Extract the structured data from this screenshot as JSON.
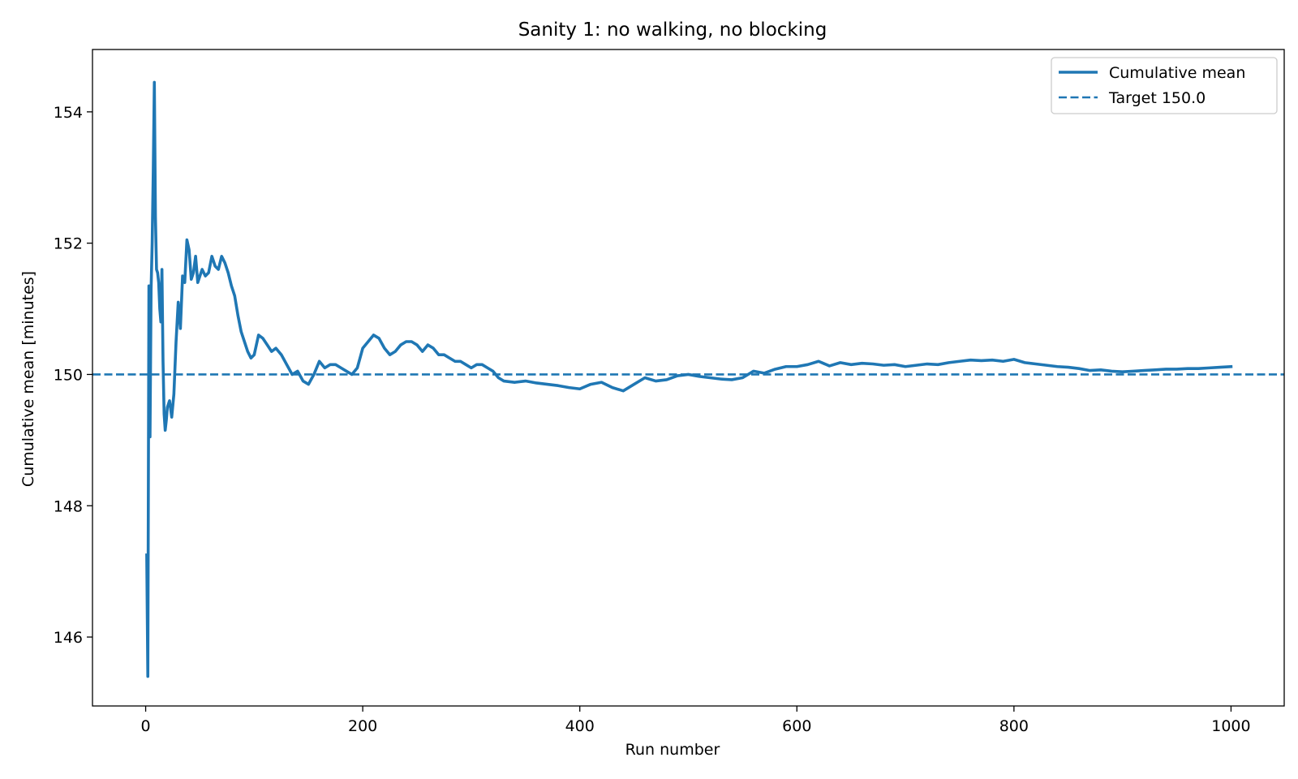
{
  "chart_data": {
    "type": "line",
    "title": "Sanity 1: no walking, no blocking",
    "xlabel": "Run number",
    "ylabel": "Cumulative mean [minutes]",
    "xlim": [
      -49,
      1049
    ],
    "ylim": [
      144.95,
      154.95
    ],
    "xticks": [
      0,
      200,
      400,
      600,
      800,
      1000
    ],
    "yticks": [
      146,
      148,
      150,
      152,
      154
    ],
    "grid": false,
    "legend_position": "top-right",
    "colors": {
      "series": "#1f77b4",
      "axes": "#000000"
    },
    "series": [
      {
        "name": "Cumulative mean",
        "style": "solid",
        "x": [
          1,
          2,
          3,
          4,
          5,
          6,
          7,
          8,
          9,
          10,
          11,
          12,
          13,
          14,
          15,
          16,
          17,
          18,
          19,
          20,
          22,
          24,
          26,
          28,
          30,
          32,
          34,
          36,
          38,
          40,
          42,
          44,
          46,
          48,
          50,
          52,
          55,
          58,
          61,
          64,
          67,
          70,
          73,
          76,
          79,
          82,
          85,
          88,
          91,
          94,
          97,
          100,
          104,
          108,
          112,
          116,
          120,
          125,
          130,
          135,
          140,
          145,
          150,
          155,
          160,
          165,
          170,
          175,
          180,
          185,
          190,
          195,
          200,
          205,
          210,
          215,
          220,
          225,
          230,
          235,
          240,
          245,
          250,
          255,
          260,
          265,
          270,
          275,
          280,
          285,
          290,
          295,
          300,
          305,
          310,
          315,
          320,
          325,
          330,
          340,
          350,
          360,
          370,
          380,
          390,
          400,
          410,
          420,
          430,
          440,
          450,
          460,
          470,
          480,
          490,
          500,
          510,
          520,
          530,
          540,
          550,
          560,
          570,
          580,
          590,
          600,
          610,
          620,
          630,
          640,
          650,
          660,
          670,
          680,
          690,
          700,
          710,
          720,
          730,
          740,
          750,
          760,
          770,
          780,
          790,
          800,
          810,
          820,
          830,
          840,
          850,
          860,
          870,
          880,
          890,
          900,
          910,
          920,
          930,
          940,
          950,
          960,
          970,
          980,
          990,
          1000
        ],
        "y": [
          147.25,
          145.4,
          151.35,
          149.05,
          151.3,
          152.0,
          153.1,
          154.45,
          152.4,
          151.6,
          151.55,
          151.4,
          151.0,
          150.8,
          151.6,
          150.2,
          149.4,
          149.15,
          149.3,
          149.5,
          149.6,
          149.35,
          149.7,
          150.5,
          151.1,
          150.7,
          151.5,
          151.4,
          152.05,
          151.9,
          151.45,
          151.55,
          151.8,
          151.4,
          151.5,
          151.6,
          151.5,
          151.55,
          151.8,
          151.65,
          151.6,
          151.8,
          151.7,
          151.55,
          151.35,
          151.2,
          150.9,
          150.65,
          150.5,
          150.35,
          150.25,
          150.3,
          150.6,
          150.55,
          150.45,
          150.35,
          150.4,
          150.3,
          150.15,
          150.0,
          150.05,
          149.9,
          149.85,
          150.0,
          150.2,
          150.1,
          150.15,
          150.15,
          150.1,
          150.05,
          150.0,
          150.1,
          150.4,
          150.5,
          150.6,
          150.55,
          150.4,
          150.3,
          150.35,
          150.45,
          150.5,
          150.5,
          150.45,
          150.35,
          150.45,
          150.4,
          150.3,
          150.3,
          150.25,
          150.2,
          150.2,
          150.15,
          150.1,
          150.15,
          150.15,
          150.1,
          150.05,
          149.95,
          149.9,
          149.88,
          149.9,
          149.87,
          149.85,
          149.83,
          149.8,
          149.78,
          149.85,
          149.88,
          149.8,
          149.75,
          149.85,
          149.95,
          149.9,
          149.92,
          149.98,
          150.0,
          149.97,
          149.95,
          149.93,
          149.92,
          149.95,
          150.05,
          150.02,
          150.08,
          150.12,
          150.12,
          150.15,
          150.2,
          150.13,
          150.18,
          150.15,
          150.17,
          150.16,
          150.14,
          150.15,
          150.12,
          150.14,
          150.16,
          150.15,
          150.18,
          150.2,
          150.22,
          150.21,
          150.22,
          150.2,
          150.23,
          150.18,
          150.16,
          150.14,
          150.12,
          150.11,
          150.09,
          150.06,
          150.07,
          150.05,
          150.04,
          150.05,
          150.06,
          150.07,
          150.08,
          150.08,
          150.09,
          150.09,
          150.1,
          150.11,
          150.12
        ]
      },
      {
        "name": "Target 150.0",
        "style": "dashed",
        "y_constant": 150.0
      }
    ]
  }
}
